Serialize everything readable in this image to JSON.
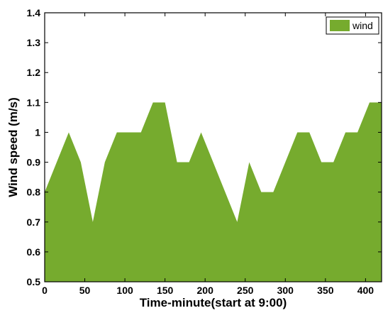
{
  "chart_data": {
    "type": "area",
    "title": "",
    "xlabel": "Time-minute(start at 9:00)",
    "ylabel": "Wind speed (m/s)",
    "xlim": [
      0,
      420
    ],
    "ylim": [
      0.5,
      1.4
    ],
    "xticks": [
      0,
      50,
      100,
      150,
      200,
      250,
      300,
      350,
      400
    ],
    "xtick_labels": [
      "0",
      "50",
      "100",
      "150",
      "200",
      "250",
      "300",
      "350",
      "400"
    ],
    "yticks": [
      0.5,
      0.6,
      0.7,
      0.8,
      0.9,
      1.0,
      1.1,
      1.2,
      1.3,
      1.4
    ],
    "ytick_labels": [
      "0.5",
      "0.6",
      "0.7",
      "0.8",
      "0.9",
      "1",
      "1.1",
      "1.2",
      "1.3",
      "1.4"
    ],
    "grid": false,
    "legend_position": "top-right",
    "series": [
      {
        "name": "wind",
        "color": "#76ab2e",
        "x": [
          0,
          15,
          30,
          45,
          60,
          75,
          90,
          105,
          120,
          135,
          150,
          165,
          180,
          195,
          210,
          225,
          240,
          255,
          270,
          285,
          300,
          315,
          330,
          345,
          360,
          375,
          390,
          405,
          420
        ],
        "y": [
          0.8,
          0.9,
          1.0,
          0.9,
          0.7,
          0.9,
          1.0,
          1.0,
          1.0,
          1.1,
          1.1,
          0.9,
          0.9,
          1.0,
          0.9,
          0.8,
          0.7,
          0.9,
          0.8,
          0.8,
          0.9,
          1.0,
          1.0,
          0.9,
          0.9,
          1.0,
          1.0,
          1.1,
          1.1
        ]
      }
    ]
  }
}
